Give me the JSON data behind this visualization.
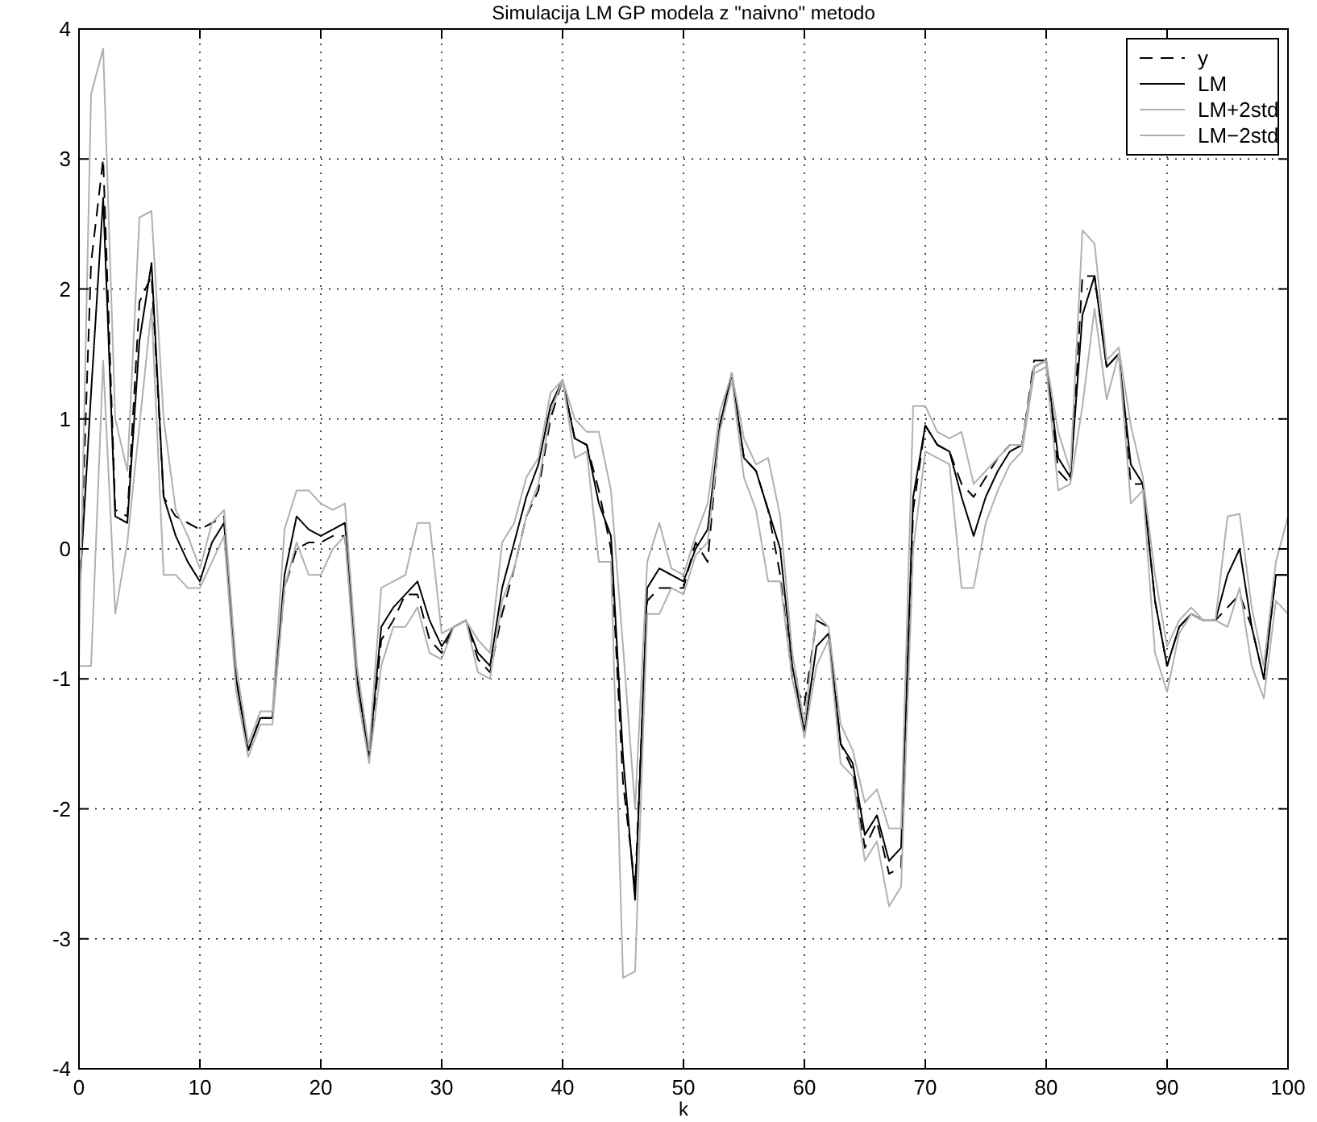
{
  "chart_data": {
    "type": "line",
    "title": "Simulacija LM GP modela z \"naivno\" metodo",
    "xlabel": "k",
    "x": [
      0,
      1,
      2,
      3,
      4,
      5,
      6,
      7,
      8,
      9,
      10,
      11,
      12,
      13,
      14,
      15,
      16,
      17,
      18,
      19,
      20,
      21,
      22,
      23,
      24,
      25,
      26,
      27,
      28,
      29,
      30,
      31,
      32,
      33,
      34,
      35,
      36,
      37,
      38,
      39,
      40,
      41,
      42,
      43,
      44,
      45,
      46,
      47,
      48,
      49,
      50,
      51,
      52,
      53,
      54,
      55,
      56,
      57,
      58,
      59,
      60,
      61,
      62,
      63,
      64,
      65,
      66,
      67,
      68,
      69,
      70,
      71,
      72,
      73,
      74,
      75,
      76,
      77,
      78,
      79,
      80,
      81,
      82,
      83,
      84,
      85,
      86,
      87,
      88,
      89,
      90,
      91,
      92,
      93,
      94,
      95,
      96,
      97,
      98,
      99,
      100
    ],
    "xlim": [
      0,
      100
    ],
    "xticks": [
      0,
      10,
      20,
      30,
      40,
      50,
      60,
      70,
      80,
      90,
      100
    ],
    "ylim": [
      -4,
      4
    ],
    "yticks": [
      -4,
      -3,
      -2,
      -1,
      0,
      1,
      2,
      3,
      4
    ],
    "grid": true,
    "legend": "top right",
    "series": [
      {
        "name": "y",
        "color": "#000000",
        "line_style": "dashed",
        "values": [
          -0.5,
          2.2,
          3.0,
          0.3,
          0.25,
          1.9,
          2.1,
          0.4,
          0.25,
          0.2,
          0.15,
          0.2,
          0.25,
          -1.0,
          -1.55,
          -1.3,
          -1.3,
          -0.3,
          0.0,
          0.05,
          0.05,
          0.1,
          0.1,
          -1.0,
          -1.6,
          -0.7,
          -0.55,
          -0.35,
          -0.35,
          -0.7,
          -0.8,
          -0.6,
          -0.55,
          -0.85,
          -0.95,
          -0.5,
          -0.15,
          0.25,
          0.45,
          1.0,
          1.3,
          0.85,
          0.8,
          0.45,
          0.0,
          -1.8,
          -2.6,
          -0.4,
          -0.3,
          -0.3,
          -0.3,
          0.05,
          -0.1,
          0.95,
          1.35,
          0.7,
          0.6,
          0.3,
          -0.2,
          -1.0,
          -1.2,
          -0.55,
          -0.6,
          -1.5,
          -1.7,
          -2.3,
          -2.1,
          -2.5,
          -2.45,
          0.3,
          0.95,
          0.8,
          0.75,
          0.5,
          0.4,
          0.55,
          0.7,
          0.8,
          0.8,
          1.45,
          1.45,
          0.6,
          0.5,
          2.1,
          2.1,
          1.4,
          1.5,
          0.5,
          0.5,
          -0.4,
          -0.9,
          -0.6,
          -0.5,
          -0.55,
          -0.55,
          -0.45,
          -0.35,
          -0.6,
          -1.0,
          -0.2,
          -0.2
        ]
      },
      {
        "name": "LM",
        "color": "#000000",
        "line_style": "solid",
        "values": [
          -0.4,
          1.2,
          2.7,
          0.25,
          0.2,
          1.6,
          2.2,
          0.4,
          0.1,
          -0.1,
          -0.25,
          0.05,
          0.2,
          -1.0,
          -1.55,
          -1.3,
          -1.3,
          -0.2,
          0.25,
          0.15,
          0.1,
          0.15,
          0.2,
          -1.0,
          -1.6,
          -0.6,
          -0.45,
          -0.35,
          -0.25,
          -0.55,
          -0.75,
          -0.6,
          -0.55,
          -0.8,
          -0.9,
          -0.3,
          0.05,
          0.4,
          0.65,
          1.1,
          1.3,
          0.85,
          0.8,
          0.35,
          0.1,
          -1.6,
          -2.7,
          -0.3,
          -0.15,
          -0.2,
          -0.25,
          0.0,
          0.15,
          0.95,
          1.35,
          0.7,
          0.6,
          0.3,
          0.0,
          -0.9,
          -1.4,
          -0.75,
          -0.65,
          -1.5,
          -1.65,
          -2.2,
          -2.05,
          -2.4,
          -2.3,
          0.4,
          0.95,
          0.8,
          0.75,
          0.4,
          0.1,
          0.4,
          0.6,
          0.75,
          0.8,
          1.4,
          1.45,
          0.7,
          0.55,
          1.8,
          2.1,
          1.4,
          1.5,
          0.65,
          0.5,
          -0.4,
          -0.9,
          -0.6,
          -0.5,
          -0.55,
          -0.55,
          -0.2,
          0.0,
          -0.6,
          -1.0,
          -0.2,
          -0.2
        ]
      },
      {
        "name": "LM+2std",
        "color": "#b0b0b0",
        "line_style": "solid",
        "values": [
          -0.85,
          3.5,
          3.85,
          1.0,
          0.6,
          2.55,
          2.6,
          1.0,
          0.3,
          0.1,
          -0.15,
          0.2,
          0.3,
          -0.9,
          -1.5,
          -1.25,
          -1.25,
          0.15,
          0.45,
          0.45,
          0.35,
          0.3,
          0.35,
          -0.9,
          -1.55,
          -0.3,
          -0.25,
          -0.2,
          0.2,
          0.2,
          -0.65,
          -0.6,
          -0.55,
          -0.7,
          -0.8,
          0.05,
          0.2,
          0.55,
          0.7,
          1.2,
          1.3,
          1.0,
          0.9,
          0.9,
          0.45,
          -0.75,
          -2.0,
          -0.1,
          0.2,
          -0.15,
          -0.2,
          0.1,
          0.35,
          1.05,
          1.35,
          0.85,
          0.65,
          0.7,
          0.25,
          -0.8,
          -1.35,
          -0.5,
          -0.6,
          -1.35,
          -1.55,
          -1.95,
          -1.85,
          -2.15,
          -2.15,
          1.1,
          1.1,
          0.9,
          0.85,
          0.9,
          0.5,
          0.6,
          0.7,
          0.8,
          0.8,
          1.4,
          1.45,
          0.9,
          0.6,
          2.45,
          2.35,
          1.45,
          1.55,
          0.95,
          0.55,
          -0.2,
          -0.75,
          -0.55,
          -0.45,
          -0.55,
          -0.55,
          0.25,
          0.27,
          -0.45,
          -0.9,
          -0.1,
          0.25
        ]
      },
      {
        "name": "LM−2std",
        "color": "#b0b0b0",
        "line_style": "solid",
        "values": [
          -0.9,
          -0.9,
          1.45,
          -0.5,
          0.05,
          0.95,
          1.85,
          -0.2,
          -0.2,
          -0.3,
          -0.3,
          -0.1,
          0.1,
          -1.1,
          -1.6,
          -1.35,
          -1.35,
          -0.3,
          0.05,
          -0.2,
          -0.2,
          0.0,
          0.1,
          -1.1,
          -1.65,
          -0.9,
          -0.6,
          -0.6,
          -0.45,
          -0.8,
          -0.85,
          -0.6,
          -0.55,
          -0.95,
          -1.0,
          -0.4,
          -0.15,
          0.25,
          0.5,
          1.05,
          1.3,
          0.7,
          0.75,
          -0.1,
          -0.1,
          -3.3,
          -3.25,
          -0.5,
          -0.5,
          -0.3,
          -0.35,
          -0.05,
          0.05,
          0.9,
          1.3,
          0.55,
          0.3,
          -0.25,
          -0.25,
          -1.0,
          -1.45,
          -0.9,
          -0.7,
          -1.65,
          -1.75,
          -2.4,
          -2.25,
          -2.75,
          -2.6,
          0.0,
          0.75,
          0.7,
          0.65,
          -0.3,
          -0.3,
          0.2,
          0.45,
          0.65,
          0.75,
          1.35,
          1.4,
          0.45,
          0.5,
          1.1,
          1.85,
          1.15,
          1.5,
          0.35,
          0.45,
          -0.8,
          -1.1,
          -0.65,
          -0.5,
          -0.55,
          -0.55,
          -0.6,
          -0.3,
          -0.9,
          -1.15,
          -0.4,
          -0.5
        ]
      }
    ]
  }
}
